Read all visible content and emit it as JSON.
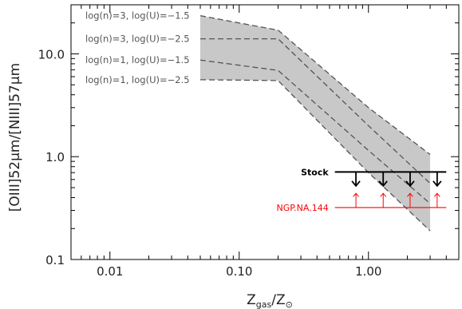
{
  "chart_data": {
    "type": "line",
    "xlabel": "Z_gas/Z_⊙",
    "xlabel_main": "Z",
    "xlabel_sub1": "gas",
    "xlabel_slash": "/Z",
    "xlabel_sub2": "⊙",
    "ylabel": "[OIII]52μm/[NIII]57μm",
    "x_scale": "log",
    "y_scale": "log",
    "xlim": [
      0.005,
      5.0
    ],
    "ylim": [
      0.1,
      30
    ],
    "x_ticks": [
      {
        "value": 0.01,
        "label": "0.01"
      },
      {
        "value": 0.1,
        "label": "0.10"
      },
      {
        "value": 1.0,
        "label": "1.00"
      }
    ],
    "y_ticks": [
      {
        "value": 0.1,
        "label": "0.1"
      },
      {
        "value": 1.0,
        "label": "1.0"
      },
      {
        "value": 10.0,
        "label": "10.0"
      }
    ],
    "band": {
      "color": "#c8c8c8",
      "upper": {
        "x": [
          0.05,
          0.2,
          1.0,
          3.0
        ],
        "y": [
          23.5,
          17.0,
          3.0,
          1.05
        ]
      },
      "lower": {
        "x": [
          0.05,
          0.2,
          1.0,
          3.0
        ],
        "y": [
          5.6,
          5.5,
          0.7,
          0.19
        ]
      }
    },
    "series": [
      {
        "name": "log(n)=3, log(U)=−1.5",
        "x": [
          0.05,
          0.2,
          1.0,
          3.0
        ],
        "y": [
          23.5,
          17.0,
          3.0,
          1.05
        ]
      },
      {
        "name": "log(n)=3, log(U)=−2.5",
        "x": [
          0.05,
          0.2,
          1.0,
          3.0
        ],
        "y": [
          14.0,
          14.0,
          2.0,
          0.55
        ]
      },
      {
        "name": "log(n)=1, log(U)=−1.5",
        "x": [
          0.05,
          0.2,
          1.0,
          3.0
        ],
        "y": [
          8.7,
          6.9,
          1.15,
          0.35
        ]
      },
      {
        "name": "log(n)=1, log(U)=−2.5",
        "x": [
          0.05,
          0.2,
          1.0,
          3.0
        ],
        "y": [
          5.6,
          5.5,
          0.7,
          0.19
        ]
      }
    ],
    "annotations": [
      {
        "label": "Stock",
        "color": "#000000",
        "y": 0.71,
        "x_range": [
          0.55,
          4.0
        ],
        "limit_type": "upper",
        "arrow_x": [
          0.8,
          1.3,
          2.1,
          3.4
        ],
        "arrow_to": 0.52
      },
      {
        "label": "NGP.NA.144",
        "color": "#ff0000",
        "y": 0.32,
        "x_range": [
          0.55,
          4.0
        ],
        "limit_type": "lower",
        "arrow_x": [
          0.8,
          1.3,
          2.1,
          3.4
        ],
        "arrow_to": 0.44
      }
    ],
    "grid": false,
    "legend": "top-left (inline labels)"
  }
}
